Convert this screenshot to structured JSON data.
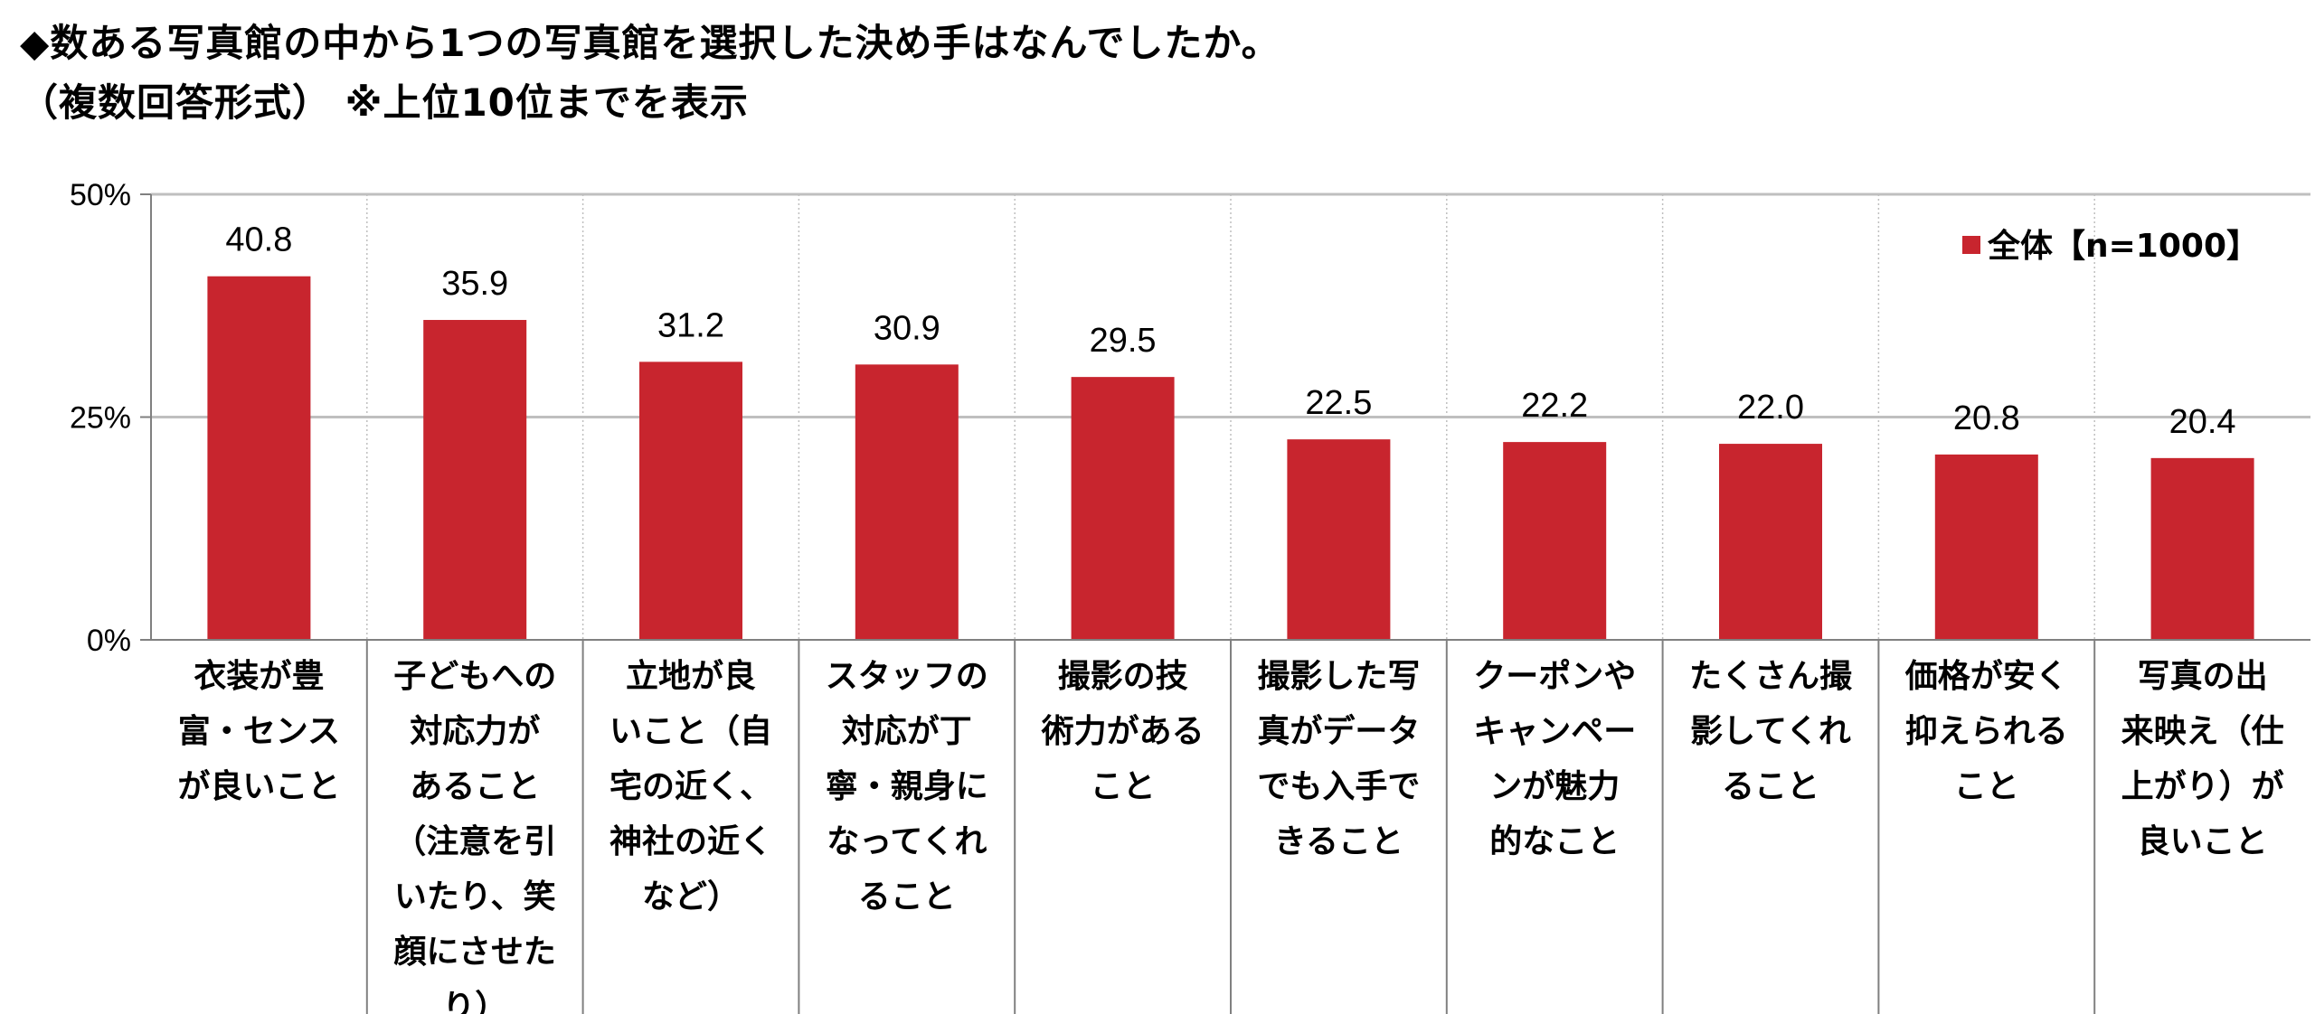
{
  "title_line1": "◆数ある写真館の中から1つの写真館を選択した決め手はなんでしたか。",
  "title_line2": "（複数回答形式） ※上位10位までを表示",
  "colors": {
    "bar": "#c8252e",
    "grid": "#bfbfbf",
    "axis": "#808080"
  },
  "chart_data": {
    "type": "bar",
    "categories": [
      "衣装が豊富・センスが良いこと",
      "子どもへの対応力があること（注意を引いたり、笑顔にさせたり）",
      "立地が良いこと（自宅の近く、神社の近くなど）",
      "スタッフの対応が丁寧・親身になってくれること",
      "撮影の技術力があること",
      "撮影した写真がデータでも入手できること",
      "クーポンやキャンペーンが魅力的なこと",
      "たくさん撮影してくれること",
      "価格が安く抑えられること",
      "写真の出来映え（仕上がり）が良いこと"
    ],
    "category_lines": [
      [
        "衣装が豊",
        "富・センス",
        "が良いこと"
      ],
      [
        "子どもへの",
        "対応力が",
        "あること",
        "（注意を引",
        "いたり、笑",
        "顔にさせた",
        "り）"
      ],
      [
        "立地が良",
        "いこと（自",
        "宅の近く、",
        "神社の近く",
        "など）"
      ],
      [
        "スタッフの",
        "対応が丁",
        "寧・親身に",
        "なってくれ",
        "ること"
      ],
      [
        "撮影の技",
        "術力がある",
        "こと"
      ],
      [
        "撮影した写",
        "真がデータ",
        "でも入手で",
        "きること"
      ],
      [
        "クーポンや",
        "キャンペー",
        "ンが魅力",
        "的なこと"
      ],
      [
        "たくさん撮",
        "影してくれ",
        "ること"
      ],
      [
        "価格が安く",
        "抑えられる",
        "こと"
      ],
      [
        "写真の出",
        "来映え（仕",
        "上がり）が",
        "良いこと"
      ]
    ],
    "series": [
      {
        "name": "全体【n=1000】",
        "values": [
          40.8,
          35.9,
          31.2,
          30.9,
          29.5,
          22.5,
          22.2,
          22.0,
          20.8,
          20.4
        ]
      }
    ],
    "data_labels": [
      "40.8",
      "35.9",
      "31.2",
      "30.9",
      "29.5",
      "22.5",
      "22.2",
      "22.0",
      "20.8",
      "20.4"
    ],
    "y_ticks": [
      0,
      25,
      50
    ],
    "y_tick_labels": [
      "0%",
      "25%",
      "50%"
    ],
    "ylim": [
      0,
      50
    ],
    "grid": true,
    "legend_position": "top-right"
  }
}
